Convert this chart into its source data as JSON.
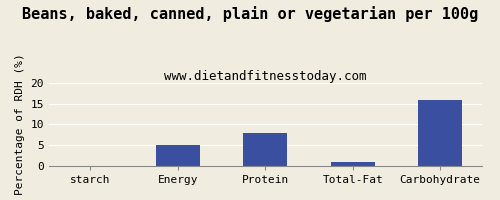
{
  "title": "Beans, baked, canned, plain or vegetarian per 100g",
  "subtitle": "www.dietandfitnesstoday.com",
  "categories": [
    "starch",
    "Energy",
    "Protein",
    "Total-Fat",
    "Carbohydrate"
  ],
  "values": [
    0,
    5,
    8,
    1,
    16
  ],
  "bar_color": "#3a4fa0",
  "ylabel": "Percentage of RDH (%)",
  "ylim": [
    0,
    20
  ],
  "yticks": [
    0,
    5,
    10,
    15,
    20
  ],
  "background_color": "#f0ede0",
  "title_fontsize": 11,
  "subtitle_fontsize": 9,
  "ylabel_fontsize": 8,
  "tick_fontsize": 8
}
